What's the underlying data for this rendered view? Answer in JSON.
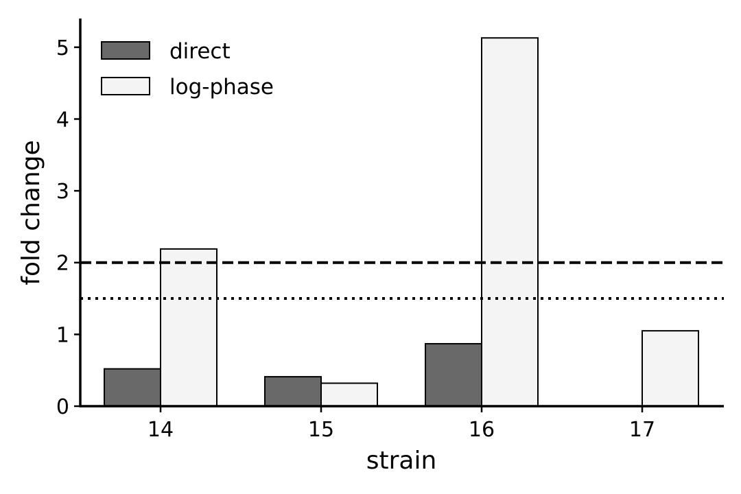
{
  "chart_data": {
    "type": "bar",
    "xlabel": "strain",
    "ylabel": "fold change",
    "categories": [
      "14",
      "15",
      "16",
      "17"
    ],
    "series": [
      {
        "name": "direct",
        "values": [
          0.52,
          0.41,
          0.87,
          null
        ],
        "color": "#696969"
      },
      {
        "name": "log-phase",
        "values": [
          2.19,
          0.32,
          5.13,
          1.05
        ],
        "color": "#f4f4f4"
      }
    ],
    "ylim": [
      0,
      5.4
    ],
    "yticks": [
      0,
      1,
      2,
      3,
      4,
      5
    ],
    "reference_lines": [
      {
        "y": 2.0,
        "style": "dashed"
      },
      {
        "y": 1.5,
        "style": "dotted"
      }
    ],
    "legend": {
      "position": "top-left"
    },
    "grid": false
  }
}
